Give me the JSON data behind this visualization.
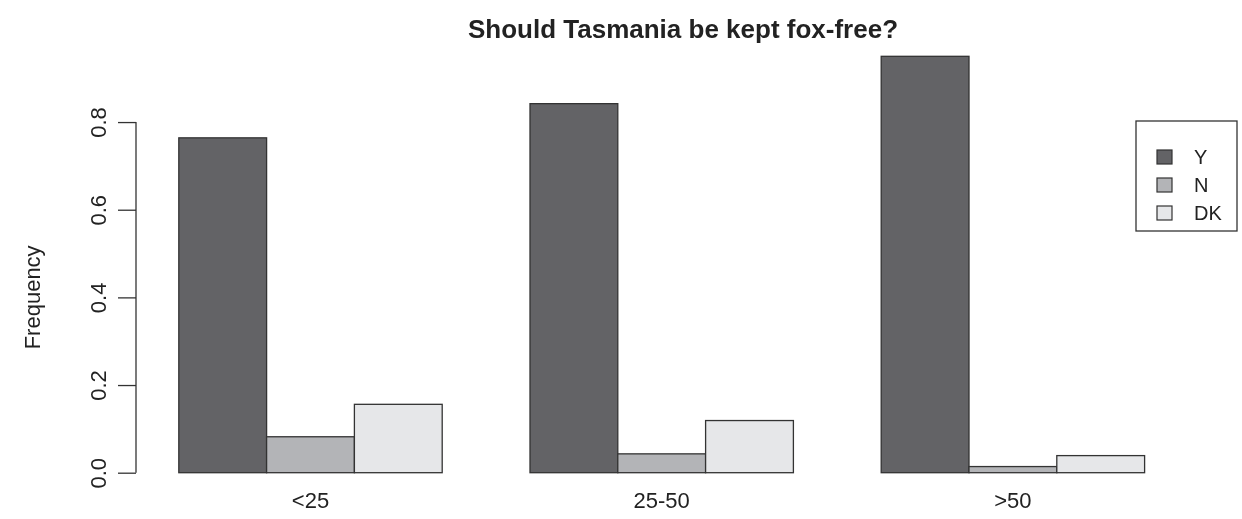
{
  "chart_data": {
    "type": "bar",
    "title": "Should Tasmania be kept fox-free?",
    "ylabel": "Frequency",
    "categories": [
      "<25",
      "25-50",
      ">50"
    ],
    "series": [
      {
        "name": "Y",
        "color": "#636366",
        "values": [
          0.764,
          0.842,
          0.95
        ]
      },
      {
        "name": "N",
        "color": "#b3b4b7",
        "values": [
          0.082,
          0.043,
          0.014
        ]
      },
      {
        "name": "DK",
        "color": "#e6e7e9",
        "values": [
          0.156,
          0.119,
          0.039
        ]
      }
    ],
    "ylim": [
      0,
      0.953
    ],
    "yticks": [
      {
        "value": 0,
        "label": "0.0"
      },
      {
        "value": 0.2,
        "label": "0.2"
      },
      {
        "value": 0.4,
        "label": "0.4"
      },
      {
        "value": 0.6,
        "label": "0.6"
      },
      {
        "value": 0.8,
        "label": "0.8"
      }
    ],
    "grid": false,
    "legend": "top right"
  }
}
